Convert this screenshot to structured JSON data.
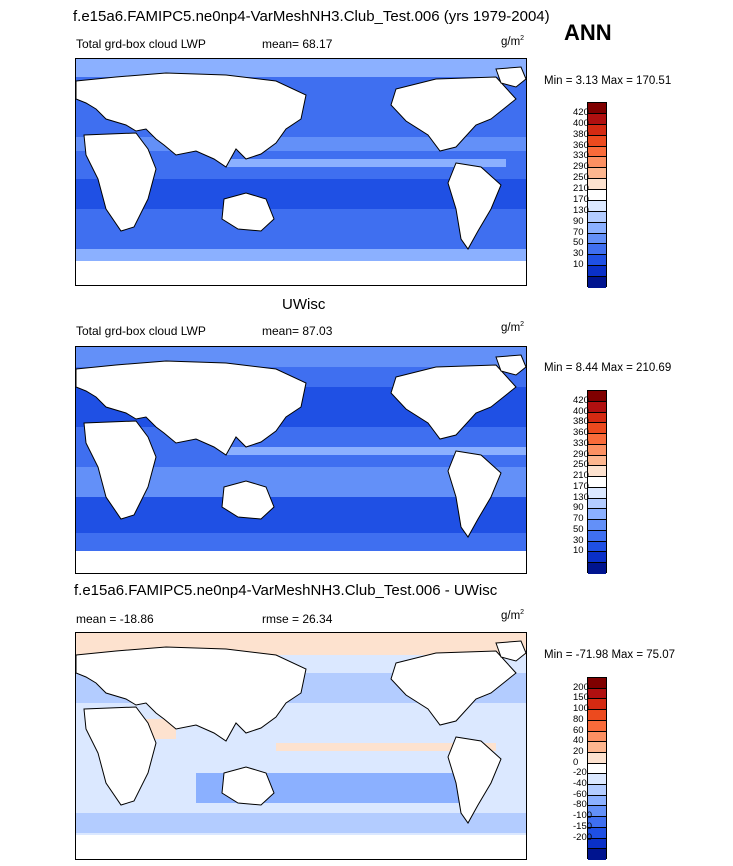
{
  "figure": {
    "title": "f.e15a6.FAMIPC5.ne0np4-VarMeshNH3.Club_Test.006 (yrs 1979-2004)",
    "season": "ANN"
  },
  "panels": [
    {
      "variable": "Total grd-box cloud LWP",
      "stat": "mean=  68.17",
      "units": "g/m",
      "units_exp": "2",
      "minmax": "Min =   3.13 Max = 170.51",
      "colorbar": {
        "labels": [
          "420",
          "400",
          "380",
          "360",
          "330",
          "290",
          "250",
          "210",
          "170",
          "130",
          "90",
          "70",
          "50",
          "30",
          "10"
        ],
        "colors": [
          "#7f0000",
          "#b01010",
          "#d42a12",
          "#ec4a1e",
          "#f96b3a",
          "#fc9062",
          "#fdb68f",
          "#fde2cf",
          "#ffffff",
          "#dbe8ff",
          "#b3ccff",
          "#8bb0ff",
          "#6390f8",
          "#3f6ff0",
          "#1f50e4",
          "#0a30c8",
          "#00148f"
        ]
      }
    },
    {
      "subtitle": "UWisc",
      "variable": "Total grd-box cloud LWP",
      "stat": "mean=  87.03",
      "units": "g/m",
      "units_exp": "2",
      "minmax": "Min =   8.44 Max = 210.69",
      "colorbar": {
        "labels": [
          "420",
          "400",
          "380",
          "360",
          "330",
          "290",
          "250",
          "210",
          "170",
          "130",
          "90",
          "70",
          "50",
          "30",
          "10"
        ],
        "colors": [
          "#7f0000",
          "#b01010",
          "#d42a12",
          "#ec4a1e",
          "#f96b3a",
          "#fc9062",
          "#fdb68f",
          "#fde2cf",
          "#ffffff",
          "#dbe8ff",
          "#b3ccff",
          "#8bb0ff",
          "#6390f8",
          "#3f6ff0",
          "#1f50e4",
          "#0a30c8",
          "#00148f"
        ]
      }
    },
    {
      "subtitle": "f.e15a6.FAMIPC5.ne0np4-VarMeshNH3.Club_Test.006 - UWisc",
      "stat_left": "mean = -18.86",
      "stat": "rmse =  26.34",
      "units": "g/m",
      "units_exp": "2",
      "minmax": "Min = -71.98 Max =  75.07",
      "colorbar": {
        "labels": [
          "200",
          "150",
          "100",
          "80",
          "60",
          "40",
          "20",
          "0",
          "-20",
          "-40",
          "-60",
          "-80",
          "-100",
          "-150",
          "-200"
        ],
        "colors": [
          "#7f0000",
          "#b01010",
          "#d42a12",
          "#ec4a1e",
          "#f96b3a",
          "#fc9062",
          "#fdb68f",
          "#fde2cf",
          "#ffffff",
          "#dbe8ff",
          "#b3ccff",
          "#8bb0ff",
          "#6390f8",
          "#3f6ff0",
          "#1f50e4",
          "#0a30c8",
          "#00148f"
        ]
      }
    }
  ],
  "map": {
    "ocean_colors": {
      "panel1": [
        "#1f50e4",
        "#3f6ff0",
        "#6390f8",
        "#8bb0ff",
        "#b3ccff"
      ],
      "panel2": [
        "#1f50e4",
        "#3f6ff0",
        "#6390f8",
        "#8bb0ff",
        "#b3ccff"
      ],
      "panel3": [
        "#dbe8ff",
        "#b3ccff",
        "#fde2cf",
        "#8bb0ff",
        "#ffffff"
      ]
    },
    "land_color": "#ffffff",
    "coast_color": "#000000"
  }
}
